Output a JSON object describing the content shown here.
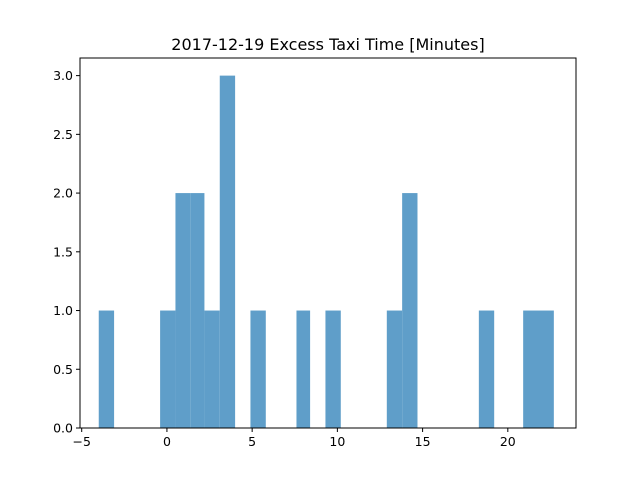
{
  "chart_data": {
    "type": "bar",
    "title": "2017-12-19 Excess Taxi Time [Minutes]",
    "xlabel": "",
    "ylabel": "",
    "xlim": [
      -5.1,
      24.0
    ],
    "ylim": [
      0,
      3.15
    ],
    "x_ticks": [
      -5,
      0,
      5,
      10,
      15,
      20
    ],
    "y_ticks": [
      0.0,
      0.5,
      1.0,
      1.5,
      2.0,
      2.5,
      3.0
    ],
    "bar_color": "#5f9ec9",
    "grid": false,
    "bins": [
      {
        "x0": -4.0,
        "x1": -3.1,
        "count": 1
      },
      {
        "x0": -0.4,
        "x1": 0.5,
        "count": 1
      },
      {
        "x0": 0.5,
        "x1": 1.4,
        "count": 2
      },
      {
        "x0": 1.4,
        "x1": 2.2,
        "count": 2
      },
      {
        "x0": 2.2,
        "x1": 3.1,
        "count": 1
      },
      {
        "x0": 3.1,
        "x1": 4.0,
        "count": 3
      },
      {
        "x0": 4.9,
        "x1": 5.8,
        "count": 1
      },
      {
        "x0": 7.6,
        "x1": 8.4,
        "count": 1
      },
      {
        "x0": 9.3,
        "x1": 10.2,
        "count": 1
      },
      {
        "x0": 12.9,
        "x1": 13.8,
        "count": 1
      },
      {
        "x0": 13.8,
        "x1": 14.7,
        "count": 2
      },
      {
        "x0": 18.3,
        "x1": 19.2,
        "count": 1
      },
      {
        "x0": 20.9,
        "x1": 21.8,
        "count": 1
      },
      {
        "x0": 21.8,
        "x1": 22.7,
        "count": 1
      }
    ]
  }
}
